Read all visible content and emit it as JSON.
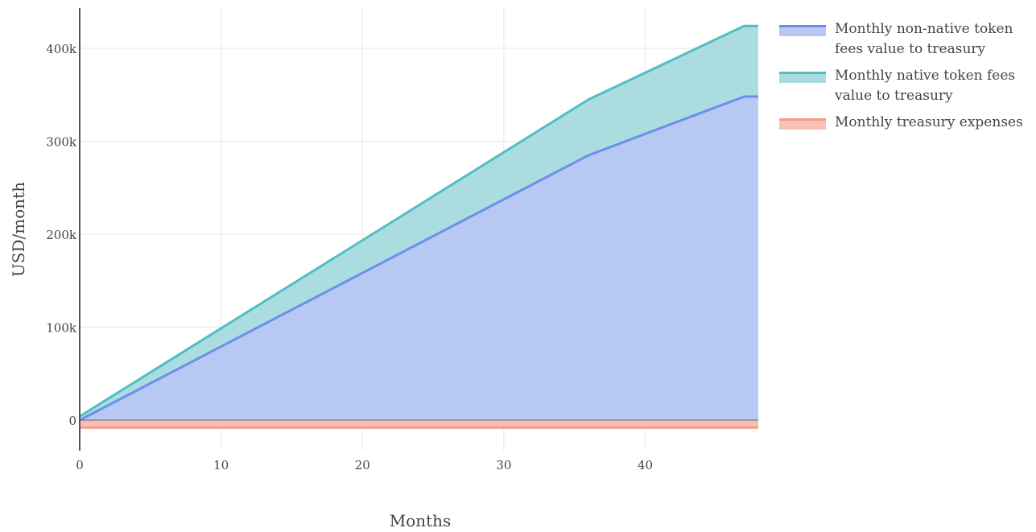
{
  "chart_data": {
    "type": "area",
    "xlabel": "Months",
    "ylabel": "USD/month",
    "xlim": [
      0,
      48
    ],
    "ylim": [
      -35000,
      440000
    ],
    "x_ticks": [
      0,
      10,
      20,
      30,
      40
    ],
    "y_ticks": [
      0,
      100000,
      200000,
      300000,
      400000
    ],
    "y_tick_labels": [
      "0",
      "100k",
      "200k",
      "300k",
      "400k"
    ],
    "stacked": true,
    "grid": true,
    "legend_position": "right",
    "series": [
      {
        "name": "Monthly non-native token fees value to treasury",
        "color": "#6b8fea",
        "fill": "#b7c9f3",
        "x": [
          0,
          36,
          47,
          48
        ],
        "y": [
          0,
          285000,
          348000,
          348000
        ]
      },
      {
        "name": "Monthly native token fees value to treasury",
        "color": "#4fbfc4",
        "fill": "#abdde0",
        "x": [
          0,
          36,
          47,
          48
        ],
        "y": [
          4000,
          60000,
          76000,
          76000
        ]
      },
      {
        "name": "Monthly treasury expenses",
        "color": "#f39a88",
        "fill": "#f8c0b4",
        "x": [
          0,
          48
        ],
        "y": [
          -8000,
          -8000
        ]
      }
    ]
  }
}
